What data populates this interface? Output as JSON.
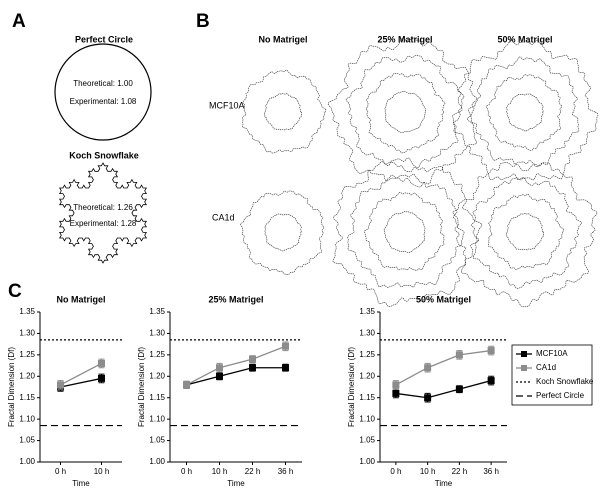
{
  "panel_labels": [
    "A",
    "B",
    "C"
  ],
  "panel_a": [
    {
      "title": "Perfect Circle",
      "theoretical": "Theoretical: 1.00",
      "experimental": "Experimental: 1.08"
    },
    {
      "title": "Koch Snowflake",
      "theoretical": "Theoretical: 1.26",
      "experimental": "Experimental: 1.28"
    }
  ],
  "panel_b": {
    "columns": [
      "No Matrigel",
      "25% Matrigel",
      "50% Matrigel"
    ],
    "rows": [
      "MCF10A",
      "CA1d"
    ]
  },
  "chart_data": [
    {
      "type": "line",
      "title": "No Matrigel",
      "x_label": "Time",
      "y_label": "Fractal Dimension (Df)",
      "categories": [
        "0 h",
        "10 h"
      ],
      "series": [
        {
          "name": "MCF10A",
          "color": "#000000",
          "values": [
            1.175,
            1.195
          ],
          "errors": [
            0.01,
            0.01
          ]
        },
        {
          "name": "CA1d",
          "color": "#8c8c8c",
          "values": [
            1.18,
            1.23
          ],
          "errors": [
            0.01,
            0.01
          ]
        }
      ],
      "hlines": [
        {
          "name": "Koch Snowflake",
          "value": 1.285,
          "style": "dotted"
        },
        {
          "name": "Perfect Circle",
          "value": 1.085,
          "style": "dashed"
        }
      ],
      "ylim": [
        1.0,
        1.35
      ],
      "yticks": [
        {
          "value": 1.0,
          "label": "1.00"
        },
        {
          "value": 1.05,
          "label": "1.05"
        },
        {
          "value": 1.1,
          "label": "1.10"
        },
        {
          "value": 1.15,
          "label": "1.15"
        },
        {
          "value": 1.2,
          "label": "1.20"
        },
        {
          "value": 1.25,
          "label": "1.25"
        },
        {
          "value": 1.3,
          "label": "1.30"
        },
        {
          "value": 1.35,
          "label": "1.35"
        }
      ],
      "legend": false
    },
    {
      "type": "line",
      "title": "25% Matrigel",
      "x_label": "Time",
      "y_label": "Fractal Dimension (Df)",
      "categories": [
        "0 h",
        "10 h",
        "22 h",
        "36 h"
      ],
      "series": [
        {
          "name": "MCF10A",
          "color": "#000000",
          "values": [
            1.18,
            1.2,
            1.22,
            1.22
          ],
          "errors": [
            0.008,
            0.008,
            0.008,
            0.008
          ]
        },
        {
          "name": "CA1d",
          "color": "#8c8c8c",
          "values": [
            1.18,
            1.22,
            1.24,
            1.27
          ],
          "errors": [
            0.008,
            0.01,
            0.008,
            0.01
          ]
        }
      ],
      "hlines": [
        {
          "name": "Koch Snowflake",
          "value": 1.285,
          "style": "dotted"
        },
        {
          "name": "Perfect Circle",
          "value": 1.085,
          "style": "dashed"
        }
      ],
      "ylim": [
        1.0,
        1.35
      ],
      "yticks": [
        {
          "value": 1.0,
          "label": "1.00"
        },
        {
          "value": 1.05,
          "label": "1.05"
        },
        {
          "value": 1.1,
          "label": "1.10"
        },
        {
          "value": 1.15,
          "label": "1.15"
        },
        {
          "value": 1.2,
          "label": "1.20"
        },
        {
          "value": 1.25,
          "label": "1.25"
        },
        {
          "value": 1.3,
          "label": "1.30"
        },
        {
          "value": 1.35,
          "label": "1.35"
        }
      ],
      "legend": false
    },
    {
      "type": "line",
      "title": "50% Matrigel",
      "x_label": "Time",
      "y_label": "Fractal Dimension (Df)",
      "categories": [
        "0 h",
        "10 h",
        "22 h",
        "36 h"
      ],
      "series": [
        {
          "name": "MCF10A",
          "color": "#000000",
          "values": [
            1.16,
            1.15,
            1.17,
            1.19
          ],
          "errors": [
            0.01,
            0.01,
            0.008,
            0.01
          ]
        },
        {
          "name": "CA1d",
          "color": "#8c8c8c",
          "values": [
            1.18,
            1.22,
            1.25,
            1.26
          ],
          "errors": [
            0.01,
            0.01,
            0.01,
            0.01
          ]
        }
      ],
      "hlines": [
        {
          "name": "Koch Snowflake",
          "value": 1.285,
          "style": "dotted"
        },
        {
          "name": "Perfect Circle",
          "value": 1.085,
          "style": "dashed"
        }
      ],
      "ylim": [
        1.0,
        1.35
      ],
      "yticks": [
        {
          "value": 1.0,
          "label": "1.00"
        },
        {
          "value": 1.05,
          "label": "1.05"
        },
        {
          "value": 1.1,
          "label": "1.10"
        },
        {
          "value": 1.15,
          "label": "1.15"
        },
        {
          "value": 1.2,
          "label": "1.20"
        },
        {
          "value": 1.25,
          "label": "1.25"
        },
        {
          "value": 1.3,
          "label": "1.30"
        },
        {
          "value": 1.35,
          "label": "1.35"
        }
      ],
      "legend": true
    }
  ]
}
